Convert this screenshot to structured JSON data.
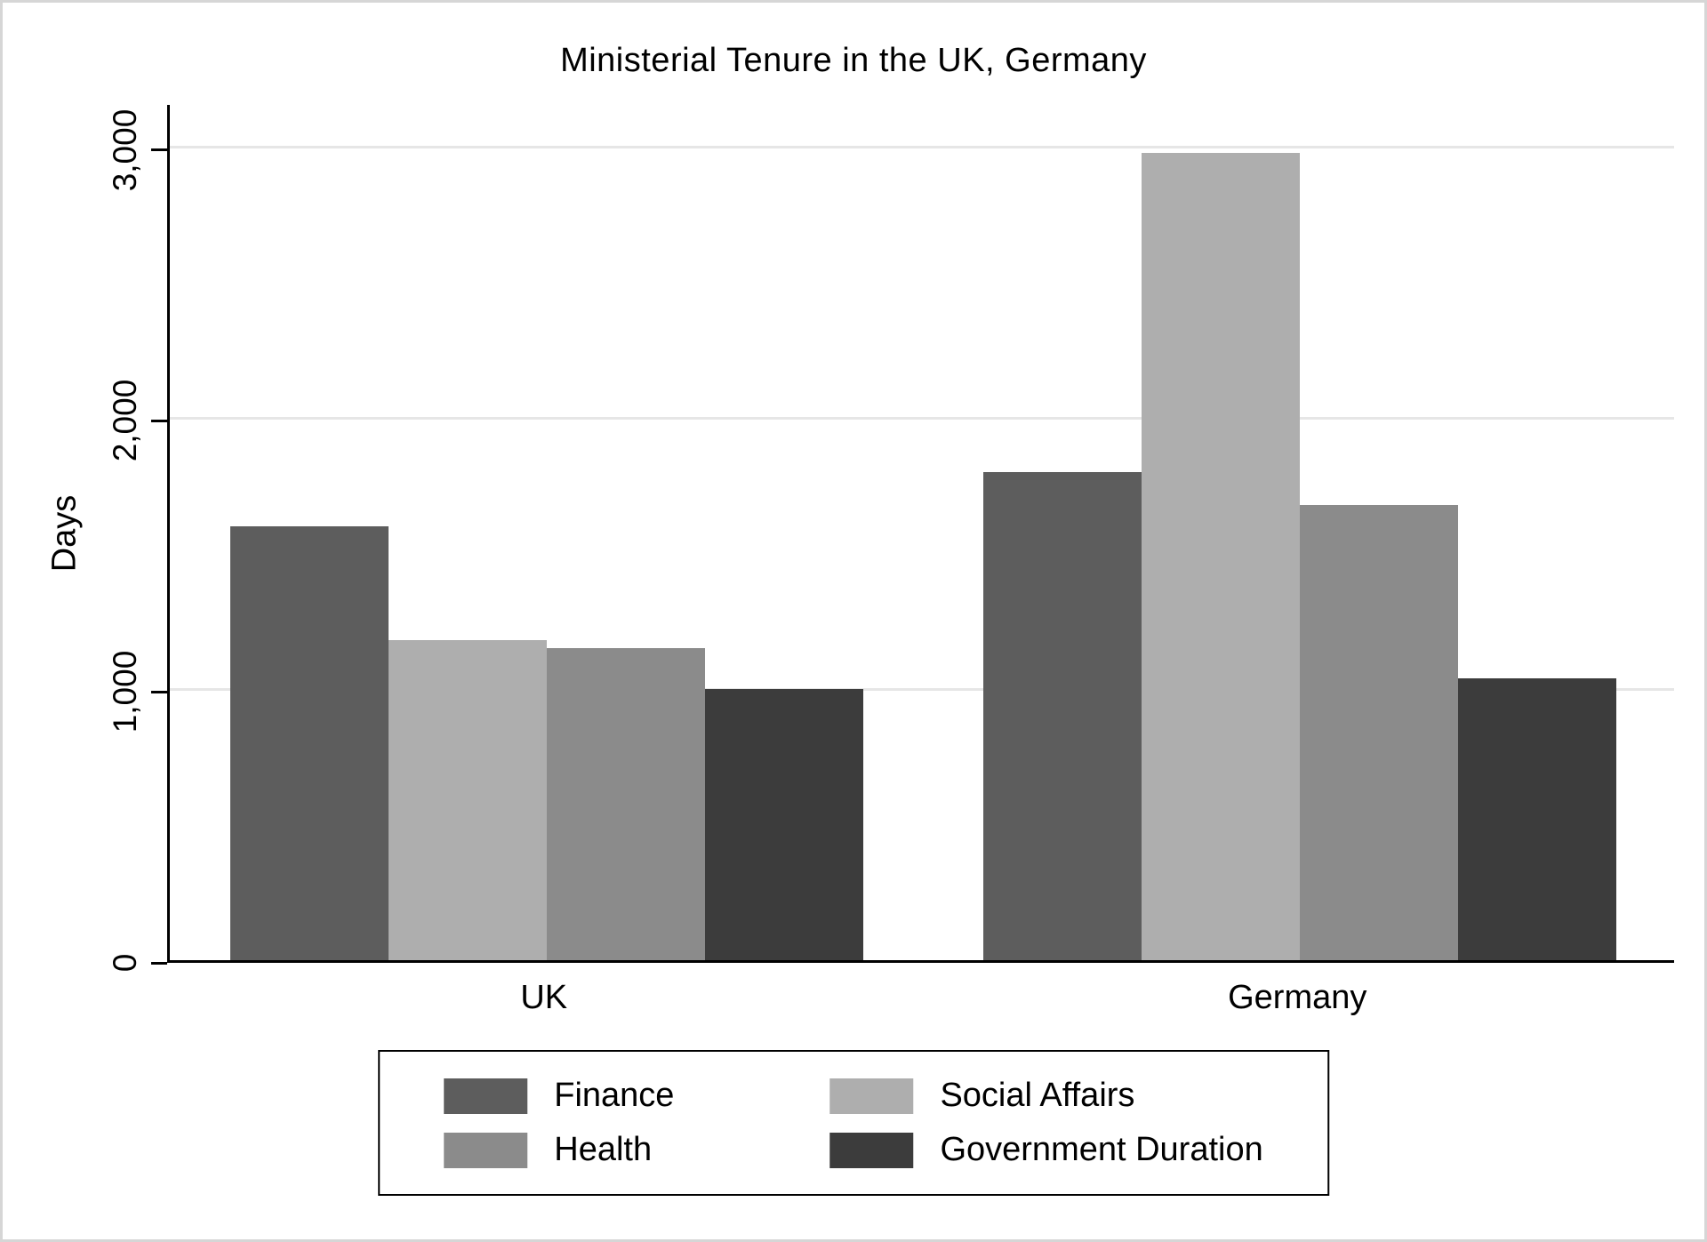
{
  "chart_data": {
    "type": "bar",
    "title": "Ministerial Tenure in the UK, Germany",
    "ylabel": "Days",
    "xlabel": "",
    "categories": [
      "UK",
      "Germany"
    ],
    "series": [
      {
        "name": "Finance",
        "color": "#5d5d5d",
        "values": [
          1600,
          1800
        ]
      },
      {
        "name": "Social Affairs",
        "color": "#aeaeae",
        "values": [
          1180,
          2980
        ]
      },
      {
        "name": "Health",
        "color": "#8b8b8b",
        "values": [
          1150,
          1680
        ]
      },
      {
        "name": "Government Duration",
        "color": "#3c3c3c",
        "values": [
          1000,
          1040
        ]
      }
    ],
    "ylim": [
      0,
      3166
    ],
    "yticks": [
      0,
      1000,
      2000,
      3000
    ],
    "ytick_labels": [
      "0",
      "1,000",
      "2,000",
      "3,000"
    ],
    "grid": true,
    "legend_position": "bottom"
  }
}
